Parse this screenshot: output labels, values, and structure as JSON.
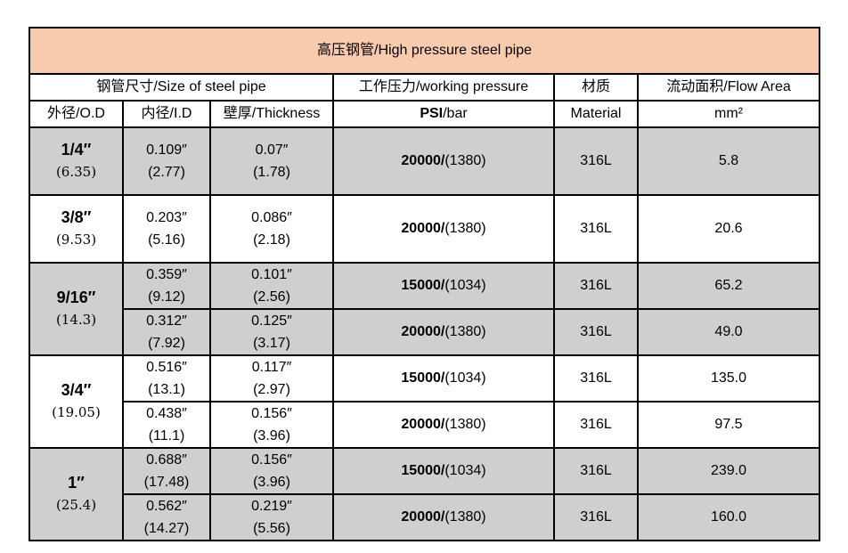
{
  "title_cn": "高压钢管",
  "title_en": "/High pressure steel pipe",
  "headers": {
    "size_group": "钢管尺寸/Size of steel pipe",
    "working_pressure": "工作压力/working pressure",
    "material": "材质",
    "flow_area": "流动面积/Flow Area",
    "od": "外径/O.D",
    "id": "内径/I.D",
    "thickness": "壁厚/Thickness",
    "psi": "PSI",
    "bar": "/bar",
    "material_en": "Material",
    "mm2": "mm²"
  },
  "groups": [
    {
      "od": "1/4″",
      "od_mm": "(6.35)",
      "rows": [
        {
          "id_in": "0.109″",
          "id_mm": "(2.77)",
          "wall_in": "0.07″",
          "wall_mm": "(1.78)",
          "psi": "20000/",
          "bar": "(1380)",
          "material": "316L",
          "area": "5.8"
        }
      ]
    },
    {
      "od": "3/8″",
      "od_mm": "(9.53)",
      "rows": [
        {
          "id_in": "0.203″",
          "id_mm": "(5.16)",
          "wall_in": "0.086″",
          "wall_mm": "(2.18)",
          "psi": "20000/",
          "bar": "(1380)",
          "material": "316L",
          "area": "20.6"
        }
      ]
    },
    {
      "od": "9/16″",
      "od_mm": "(14.3)",
      "rows": [
        {
          "id_in": "0.359″",
          "id_mm": "(9.12)",
          "wall_in": "0.101″",
          "wall_mm": "(2.56)",
          "psi": "15000/",
          "bar": "(1034)",
          "material": "316L",
          "area": "65.2"
        },
        {
          "id_in": "0.312″",
          "id_mm": "(7.92)",
          "wall_in": "0.125″",
          "wall_mm": "(3.17)",
          "psi": "20000/",
          "bar": "(1380)",
          "material": "316L",
          "area": "49.0"
        }
      ]
    },
    {
      "od": "3/4″",
      "od_mm": "(19.05)",
      "rows": [
        {
          "id_in": "0.516″",
          "id_mm": "(13.1)",
          "wall_in": "0.117″",
          "wall_mm": "(2.97)",
          "psi": "15000/",
          "bar": "(1034)",
          "material": "316L",
          "area": "135.0"
        },
        {
          "id_in": "0.438″",
          "id_mm": "(11.1)",
          "wall_in": "0.156″",
          "wall_mm": "(3.96)",
          "psi": "20000/",
          "bar": "(1380)",
          "material": "316L",
          "area": "97.5"
        }
      ]
    },
    {
      "od": "1″",
      "od_mm": "(25.4)",
      "rows": [
        {
          "id_in": "0.688″",
          "id_mm": "(17.48)",
          "wall_in": "0.156″",
          "wall_mm": "(3.96)",
          "psi": "15000/",
          "bar": "(1034)",
          "material": "316L",
          "area": "239.0"
        },
        {
          "id_in": "0.562″",
          "id_mm": "(14.27)",
          "wall_in": "0.219″",
          "wall_mm": "(5.56)",
          "psi": "20000/",
          "bar": "(1380)",
          "material": "316L",
          "area": "160.0"
        }
      ]
    }
  ],
  "colors": {
    "title_bg": "#f8cbad",
    "gray_row_bg": "#d0cece",
    "border": "#000000"
  }
}
